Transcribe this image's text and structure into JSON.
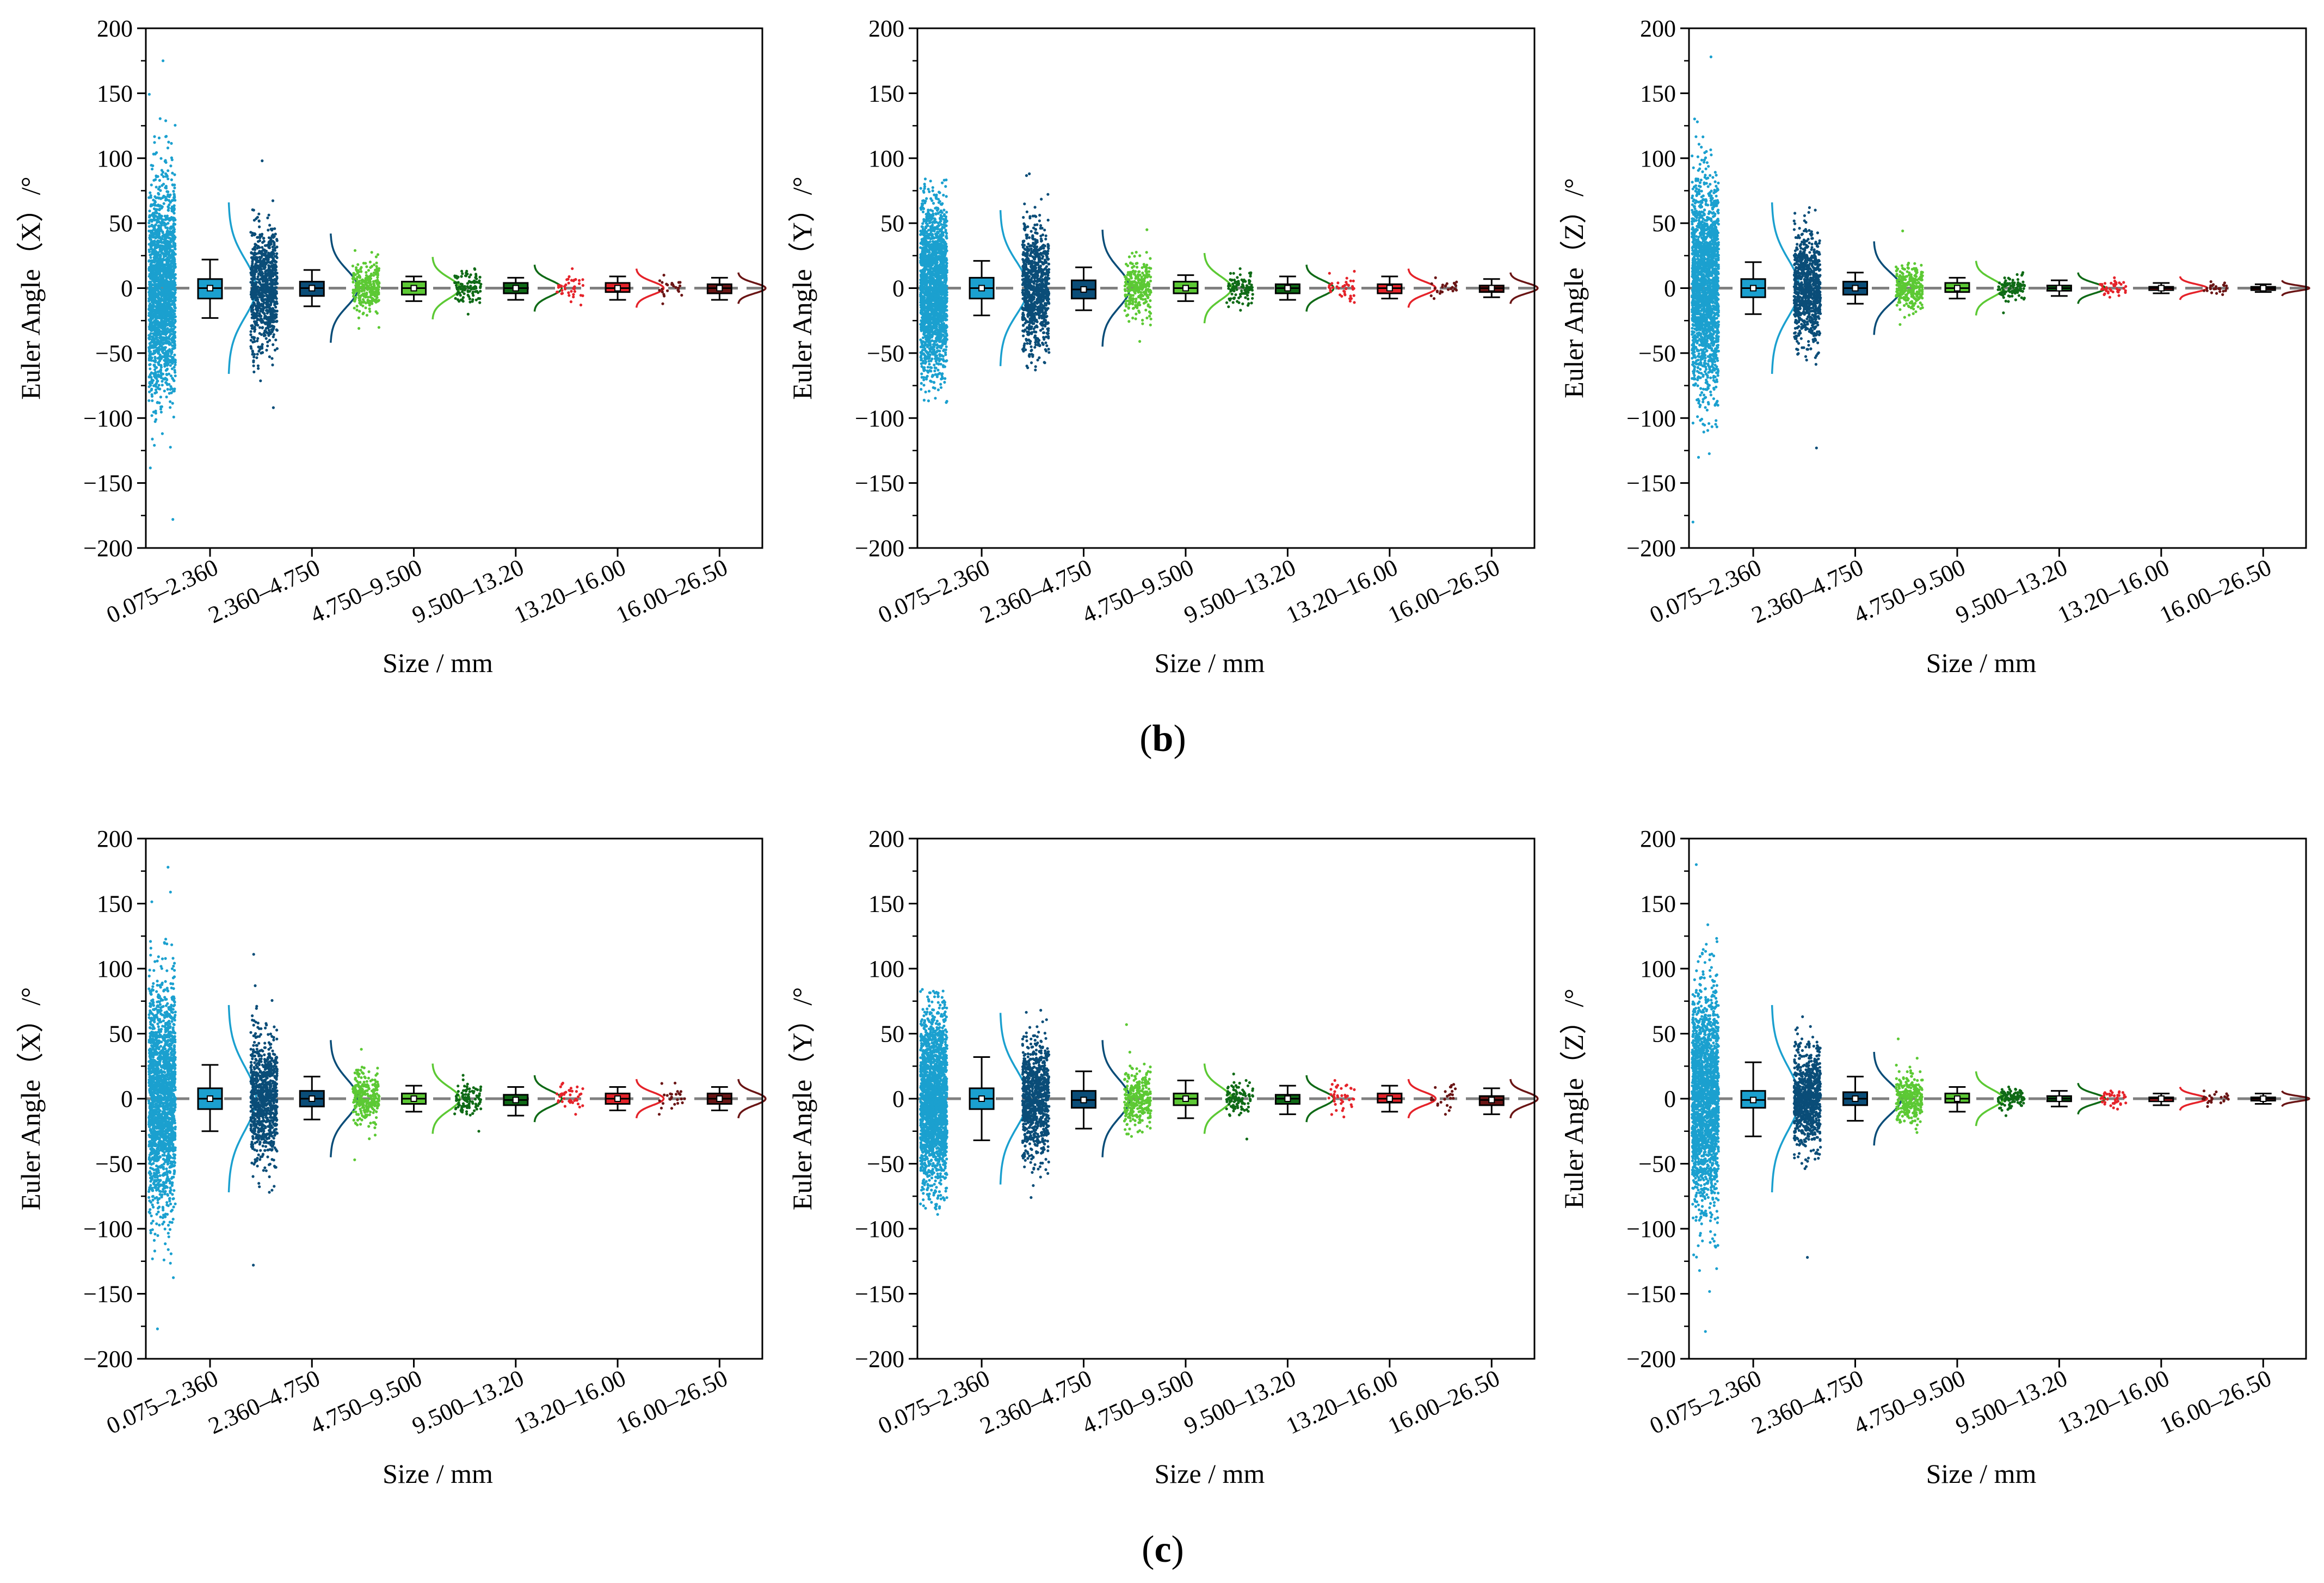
{
  "figure": {
    "row_labels": [
      {
        "text": "(b)",
        "letter": "b"
      },
      {
        "text": "(c)",
        "letter": "c"
      }
    ]
  },
  "colors": {
    "group_colors": [
      "#1ba0cf",
      "#0a4d78",
      "#5cc934",
      "#0f6a16",
      "#e5232a",
      "#6a1515"
    ],
    "zero_line": "#808080"
  },
  "chart_data": [
    {
      "type": "raincloud",
      "row": "b",
      "col": 0,
      "title": "",
      "xlabel": "Size / mm",
      "ylabel": "Euler Angle（X）/°",
      "ylim": [
        -200,
        200
      ],
      "yticks": [
        -200,
        -150,
        -100,
        -50,
        0,
        50,
        100,
        150,
        200
      ],
      "categories": [
        "0.075–2.360",
        "2.360–4.750",
        "4.750–9.500",
        "9.500–13.20",
        "13.20–16.00",
        "16.00–26.50"
      ],
      "groups": [
        {
          "n": 2000,
          "min": -178,
          "max": 175,
          "sd": 40,
          "q1": -8,
          "median": 0,
          "q3": 7,
          "wlow": -23,
          "whigh": 22,
          "curve_sd": 22
        },
        {
          "n": 900,
          "min": -92,
          "max": 98,
          "sd": 22,
          "q1": -6,
          "median": 0,
          "q3": 5,
          "wlow": -14,
          "whigh": 14,
          "curve_sd": 14
        },
        {
          "n": 280,
          "min": -31,
          "max": 29,
          "sd": 9,
          "q1": -5,
          "median": 0,
          "q3": 5,
          "wlow": -10,
          "whigh": 9,
          "curve_sd": 8
        },
        {
          "n": 110,
          "min": -20,
          "max": 15,
          "sd": 6,
          "q1": -4,
          "median": 0,
          "q3": 4,
          "wlow": -9,
          "whigh": 8,
          "curve_sd": 6
        },
        {
          "n": 40,
          "min": -13,
          "max": 15,
          "sd": 5,
          "q1": -3,
          "median": 0,
          "q3": 4,
          "wlow": -9,
          "whigh": 9,
          "curve_sd": 5
        },
        {
          "n": 25,
          "min": -12,
          "max": 10,
          "sd": 4,
          "q1": -4,
          "median": 0,
          "q3": 3,
          "wlow": -9,
          "whigh": 8,
          "curve_sd": 4
        }
      ]
    },
    {
      "type": "raincloud",
      "row": "b",
      "col": 1,
      "title": "",
      "xlabel": "Size / mm",
      "ylabel": "Euler Angle（Y）/°",
      "ylim": [
        -200,
        200
      ],
      "yticks": [
        -200,
        -150,
        -100,
        -50,
        0,
        50,
        100,
        150,
        200
      ],
      "categories": [
        "0.075–2.360",
        "2.360–4.750",
        "4.750–9.500",
        "9.500–13.20",
        "13.20–16.00",
        "16.00–26.50"
      ],
      "groups": [
        {
          "n": 2000,
          "min": -88,
          "max": 84,
          "sd": 32,
          "q1": -8,
          "median": 0,
          "q3": 8,
          "wlow": -21,
          "whigh": 21,
          "curve_sd": 20
        },
        {
          "n": 900,
          "min": -63,
          "max": 88,
          "sd": 24,
          "q1": -8,
          "median": -1,
          "q3": 6,
          "wlow": -17,
          "whigh": 16,
          "curve_sd": 15
        },
        {
          "n": 280,
          "min": -41,
          "max": 45,
          "sd": 11,
          "q1": -4,
          "median": 0,
          "q3": 5,
          "wlow": -10,
          "whigh": 10,
          "curve_sd": 9
        },
        {
          "n": 110,
          "min": -17,
          "max": 15,
          "sd": 6,
          "q1": -4,
          "median": 0,
          "q3": 3,
          "wlow": -9,
          "whigh": 9,
          "curve_sd": 6
        },
        {
          "n": 40,
          "min": -11,
          "max": 13,
          "sd": 5,
          "q1": -4,
          "median": 0,
          "q3": 3,
          "wlow": -8,
          "whigh": 9,
          "curve_sd": 5
        },
        {
          "n": 25,
          "min": -8,
          "max": 8,
          "sd": 3,
          "q1": -3,
          "median": 0,
          "q3": 2,
          "wlow": -7,
          "whigh": 7,
          "curve_sd": 4
        }
      ]
    },
    {
      "type": "raincloud",
      "row": "b",
      "col": 2,
      "title": "",
      "xlabel": "Size / mm",
      "ylabel": "Euler Angle（Z）/°",
      "ylim": [
        -200,
        200
      ],
      "yticks": [
        -200,
        -150,
        -100,
        -50,
        0,
        50,
        100,
        150,
        200
      ],
      "categories": [
        "0.075–2.360",
        "2.360–4.750",
        "4.750–9.500",
        "9.500–13.20",
        "13.20–16.00",
        "16.00–26.50"
      ],
      "groups": [
        {
          "n": 2000,
          "min": -180,
          "max": 178,
          "sd": 40,
          "q1": -7,
          "median": 0,
          "q3": 7,
          "wlow": -20,
          "whigh": 20,
          "curve_sd": 22
        },
        {
          "n": 900,
          "min": -123,
          "max": 62,
          "sd": 20,
          "q1": -5,
          "median": 0,
          "q3": 5,
          "wlow": -12,
          "whigh": 12,
          "curve_sd": 12
        },
        {
          "n": 280,
          "min": -28,
          "max": 44,
          "sd": 8,
          "q1": -3,
          "median": 0,
          "q3": 4,
          "wlow": -8,
          "whigh": 8,
          "curve_sd": 7
        },
        {
          "n": 110,
          "min": -19,
          "max": 12,
          "sd": 4,
          "q1": -2,
          "median": 0,
          "q3": 2,
          "wlow": -6,
          "whigh": 6,
          "curve_sd": 4
        },
        {
          "n": 40,
          "min": -7,
          "max": 8,
          "sd": 3,
          "q1": -1,
          "median": 0,
          "q3": 1,
          "wlow": -4,
          "whigh": 4,
          "curve_sd": 3
        },
        {
          "n": 25,
          "min": -5,
          "max": 5,
          "sd": 2,
          "q1": -1,
          "median": 0,
          "q3": 1,
          "wlow": -3,
          "whigh": 3,
          "curve_sd": 2
        }
      ]
    },
    {
      "type": "raincloud",
      "row": "c",
      "col": 0,
      "title": "",
      "xlabel": "Size / mm",
      "ylabel": "Euler Angle（X）/°",
      "ylim": [
        -200,
        200
      ],
      "yticks": [
        -200,
        -150,
        -100,
        -50,
        0,
        50,
        100,
        150,
        200
      ],
      "categories": [
        "0.075–2.360",
        "2.360–4.750",
        "4.750–9.500",
        "9.500–13.20",
        "13.20–16.00",
        "16.00–26.50"
      ],
      "groups": [
        {
          "n": 2000,
          "min": -177,
          "max": 178,
          "sd": 42,
          "q1": -8,
          "median": 0,
          "q3": 8,
          "wlow": -25,
          "whigh": 26,
          "curve_sd": 24
        },
        {
          "n": 900,
          "min": -128,
          "max": 111,
          "sd": 24,
          "q1": -6,
          "median": 0,
          "q3": 6,
          "wlow": -16,
          "whigh": 17,
          "curve_sd": 15
        },
        {
          "n": 280,
          "min": -47,
          "max": 38,
          "sd": 10,
          "q1": -4,
          "median": 0,
          "q3": 4,
          "wlow": -10,
          "whigh": 10,
          "curve_sd": 9
        },
        {
          "n": 110,
          "min": -25,
          "max": 18,
          "sd": 6,
          "q1": -5,
          "median": -1,
          "q3": 3,
          "wlow": -13,
          "whigh": 9,
          "curve_sd": 6
        },
        {
          "n": 40,
          "min": -12,
          "max": 12,
          "sd": 5,
          "q1": -4,
          "median": 0,
          "q3": 4,
          "wlow": -9,
          "whigh": 9,
          "curve_sd": 5
        },
        {
          "n": 25,
          "min": -12,
          "max": 12,
          "sd": 5,
          "q1": -4,
          "median": 0,
          "q3": 4,
          "wlow": -9,
          "whigh": 9,
          "curve_sd": 5
        }
      ]
    },
    {
      "type": "raincloud",
      "row": "c",
      "col": 1,
      "title": "",
      "xlabel": "Size / mm",
      "ylabel": "Euler Angle（Y）/°",
      "ylim": [
        -200,
        200
      ],
      "yticks": [
        -200,
        -150,
        -100,
        -50,
        0,
        50,
        100,
        150,
        200
      ],
      "categories": [
        "0.075–2.360",
        "2.360–4.750",
        "4.750–9.500",
        "9.500–13.20",
        "13.20–16.00",
        "16.00–26.50"
      ],
      "groups": [
        {
          "n": 2000,
          "min": -89,
          "max": 84,
          "sd": 34,
          "q1": -8,
          "median": 0,
          "q3": 8,
          "wlow": -32,
          "whigh": 32,
          "curve_sd": 22
        },
        {
          "n": 900,
          "min": -76,
          "max": 68,
          "sd": 22,
          "q1": -7,
          "median": -1,
          "q3": 6,
          "wlow": -23,
          "whigh": 21,
          "curve_sd": 15
        },
        {
          "n": 280,
          "min": -29,
          "max": 57,
          "sd": 10,
          "q1": -5,
          "median": 0,
          "q3": 4,
          "wlow": -15,
          "whigh": 14,
          "curve_sd": 9
        },
        {
          "n": 110,
          "min": -31,
          "max": 19,
          "sd": 6,
          "q1": -4,
          "median": 0,
          "q3": 3,
          "wlow": -12,
          "whigh": 10,
          "curve_sd": 6
        },
        {
          "n": 40,
          "min": -14,
          "max": 14,
          "sd": 5,
          "q1": -3,
          "median": 0,
          "q3": 4,
          "wlow": -10,
          "whigh": 10,
          "curve_sd": 5
        },
        {
          "n": 25,
          "min": -12,
          "max": 11,
          "sd": 5,
          "q1": -5,
          "median": -1,
          "q3": 2,
          "wlow": -12,
          "whigh": 8,
          "curve_sd": 5
        }
      ]
    },
    {
      "type": "raincloud",
      "row": "c",
      "col": 2,
      "title": "",
      "xlabel": "Size / mm",
      "ylabel": "Euler Angle（Z）/°",
      "ylim": [
        -200,
        200
      ],
      "yticks": [
        -200,
        -150,
        -100,
        -50,
        0,
        50,
        100,
        150,
        200
      ],
      "categories": [
        "0.075–2.360",
        "2.360–4.750",
        "4.750–9.500",
        "9.500–13.20",
        "13.20–16.00",
        "16.00–26.50"
      ],
      "groups": [
        {
          "n": 2000,
          "min": -179,
          "max": 180,
          "sd": 42,
          "q1": -7,
          "median": -1,
          "q3": 6,
          "wlow": -29,
          "whigh": 28,
          "curve_sd": 24
        },
        {
          "n": 900,
          "min": -122,
          "max": 63,
          "sd": 18,
          "q1": -5,
          "median": 0,
          "q3": 5,
          "wlow": -17,
          "whigh": 17,
          "curve_sd": 12
        },
        {
          "n": 280,
          "min": -26,
          "max": 46,
          "sd": 9,
          "q1": -3,
          "median": 0,
          "q3": 4,
          "wlow": -10,
          "whigh": 9,
          "curve_sd": 7
        },
        {
          "n": 110,
          "min": -13,
          "max": 9,
          "sd": 4,
          "q1": -2,
          "median": 0,
          "q3": 2,
          "wlow": -6,
          "whigh": 6,
          "curve_sd": 4
        },
        {
          "n": 40,
          "min": -8,
          "max": 6,
          "sd": 3,
          "q1": -2,
          "median": 0,
          "q3": 1,
          "wlow": -5,
          "whigh": 4,
          "curve_sd": 3
        },
        {
          "n": 25,
          "min": -6,
          "max": 6,
          "sd": 2,
          "q1": -1,
          "median": 0,
          "q3": 1,
          "wlow": -4,
          "whigh": 4,
          "curve_sd": 2
        }
      ]
    }
  ]
}
